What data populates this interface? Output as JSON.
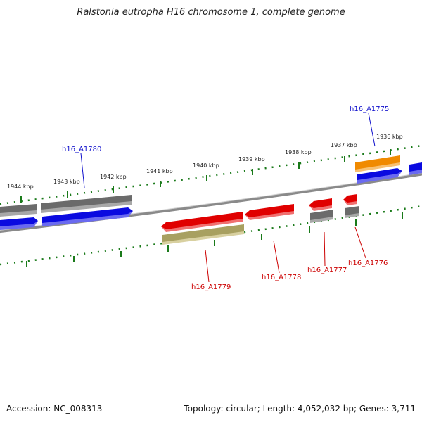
{
  "title": "Ralstonia eutropha H16 chromosome 1, complete genome",
  "footer": {
    "accession": "Accession: NC_008313",
    "summary": "Topology: circular; Length: 4,052,032 bp; Genes: 3,711"
  },
  "colors": {
    "label_blue": "#1010cc",
    "label_red": "#cc0000",
    "tick_green": "#1a7a1a",
    "backbone": "#8a8a8a"
  },
  "ticks": [
    "1944 kbp",
    "1943 kbp",
    "1942 kbp",
    "1941 kbp",
    "1940 kbp",
    "1939 kbp",
    "1938 kbp",
    "1937 kbp",
    "1936 kbp"
  ],
  "gene_labels": [
    {
      "text": "h16_A1780",
      "color": "blue"
    },
    {
      "text": "h16_A1775",
      "color": "blue"
    },
    {
      "text": "h16_A1779",
      "color": "red"
    },
    {
      "text": "h16_A1778",
      "color": "red"
    },
    {
      "text": "h16_A1777",
      "color": "red"
    },
    {
      "text": "h16_A1776",
      "color": "red"
    }
  ]
}
